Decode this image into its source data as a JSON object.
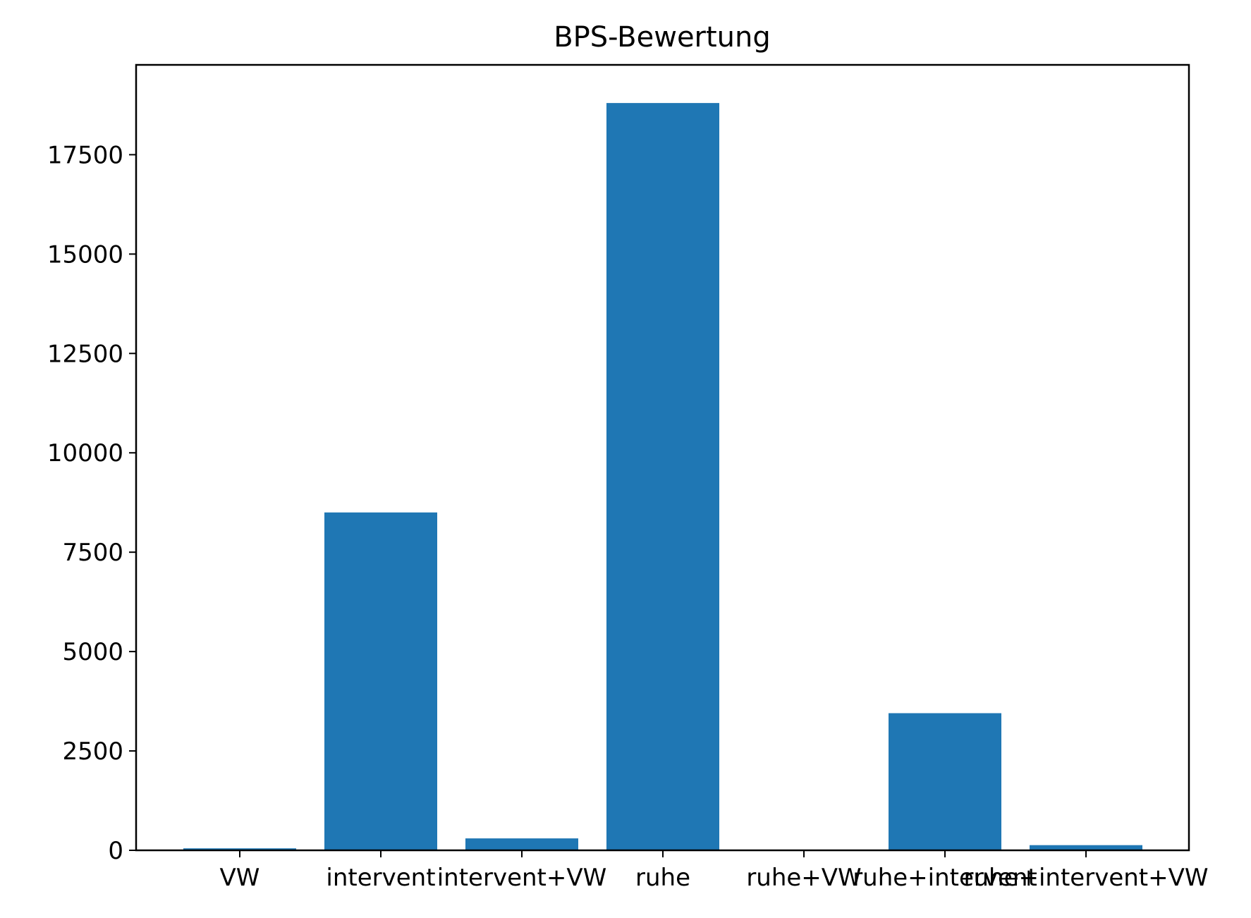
{
  "chart_data": {
    "type": "bar",
    "title": "BPS-Bewertung",
    "xlabel": "",
    "ylabel": "",
    "categories": [
      "VW",
      "intervent",
      "intervent+VW",
      "ruhe",
      "ruhe+VW",
      "ruhe+intervent",
      "ruhe+intervent+VW"
    ],
    "values": [
      50,
      8500,
      300,
      18800,
      0,
      3450,
      130
    ],
    "ylim": [
      0,
      19760
    ],
    "yticks": [
      0,
      2500,
      5000,
      7500,
      10000,
      12500,
      15000,
      17500
    ],
    "ytick_labels": [
      "0",
      "2500",
      "5000",
      "7500",
      "10000",
      "12500",
      "15000",
      "17500"
    ],
    "grid": false,
    "legend": "none",
    "colors": {
      "bar": "#1f77b4",
      "axes": "#000000",
      "background": "#ffffff"
    }
  }
}
